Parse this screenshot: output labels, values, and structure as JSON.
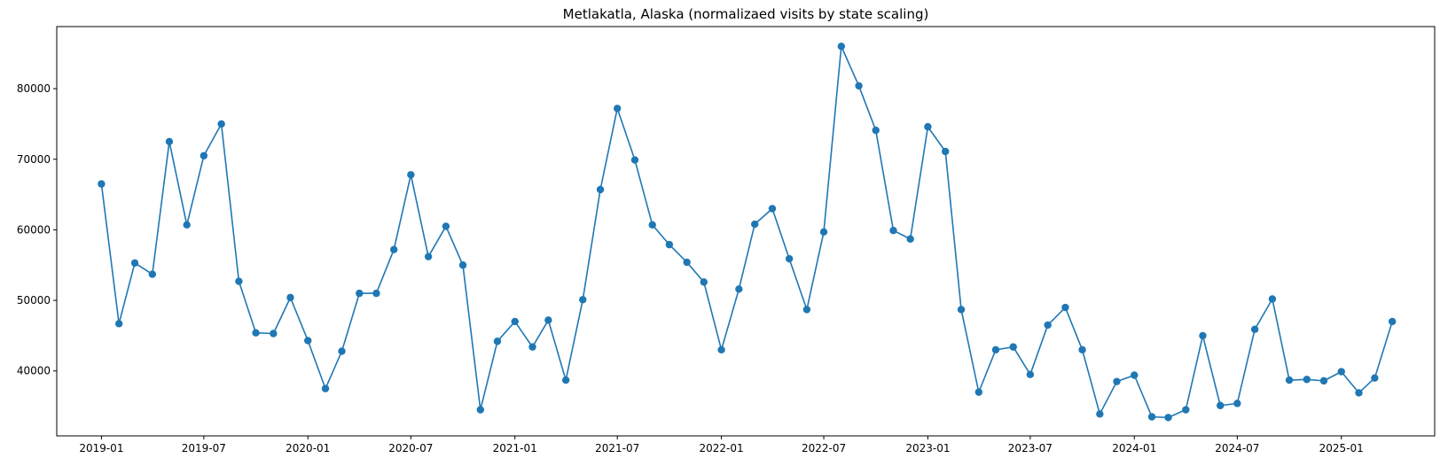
{
  "chart_data": {
    "type": "line",
    "title": "Metlakatla, Alaska (normalizaed visits by state scaling)",
    "xlabel": "",
    "ylabel": "",
    "color": "#1f77b4",
    "marker": "circle",
    "grid": false,
    "x_ticks": [
      "2019-01",
      "2019-07",
      "2020-01",
      "2020-07",
      "2021-01",
      "2021-07",
      "2022-01",
      "2022-07",
      "2023-01",
      "2023-07",
      "2024-01",
      "2024-07",
      "2025-01"
    ],
    "y_ticks": [
      40000,
      50000,
      60000,
      70000,
      80000
    ],
    "xlim": [
      "2018-10-14",
      "2025-06-15"
    ],
    "ylim": [
      30800,
      88800
    ],
    "series": [
      {
        "x": [
          "2019-01",
          "2019-02",
          "2019-03",
          "2019-04",
          "2019-05",
          "2019-06",
          "2019-07",
          "2019-08",
          "2019-09",
          "2019-10",
          "2019-11",
          "2019-12",
          "2020-01",
          "2020-02",
          "2020-03",
          "2020-04",
          "2020-05",
          "2020-06",
          "2020-07",
          "2020-08",
          "2020-09",
          "2020-10",
          "2020-11",
          "2020-12",
          "2021-01",
          "2021-02",
          "2021-03",
          "2021-04",
          "2021-05",
          "2021-06",
          "2021-07",
          "2021-08",
          "2021-09",
          "2021-10",
          "2021-11",
          "2021-12",
          "2022-01",
          "2022-02",
          "2022-03",
          "2022-04",
          "2022-05",
          "2022-06",
          "2022-07",
          "2022-08",
          "2022-09",
          "2022-10",
          "2022-11",
          "2022-12",
          "2023-01",
          "2023-02",
          "2023-03",
          "2023-04",
          "2023-05",
          "2023-06",
          "2023-07",
          "2023-08",
          "2023-09",
          "2023-10",
          "2023-11",
          "2023-12",
          "2024-01",
          "2024-02",
          "2024-03",
          "2024-04",
          "2024-05",
          "2024-06",
          "2024-07",
          "2024-08",
          "2024-09",
          "2024-10",
          "2024-11",
          "2024-12",
          "2025-01",
          "2025-02",
          "2025-03",
          "2025-04"
        ],
        "values": [
          66500,
          46700,
          55300,
          53700,
          72500,
          60700,
          70500,
          75000,
          52700,
          45400,
          45300,
          50400,
          44300,
          37500,
          42800,
          51000,
          51000,
          57200,
          67800,
          56200,
          60500,
          55000,
          34500,
          44200,
          47000,
          43400,
          47200,
          38700,
          50100,
          65700,
          77200,
          69900,
          60700,
          57900,
          55400,
          52600,
          43000,
          51600,
          60800,
          63000,
          55900,
          48700,
          59700,
          86000,
          80400,
          74100,
          59900,
          58700,
          74600,
          71100,
          48700,
          37000,
          43000,
          43400,
          39500,
          46500,
          49000,
          43000,
          33900,
          38500,
          39400,
          33500,
          33400,
          34500,
          45000,
          35100,
          35400,
          45900,
          50200,
          38700,
          38800,
          38600,
          39900,
          36900,
          39000,
          47000
        ]
      }
    ]
  }
}
